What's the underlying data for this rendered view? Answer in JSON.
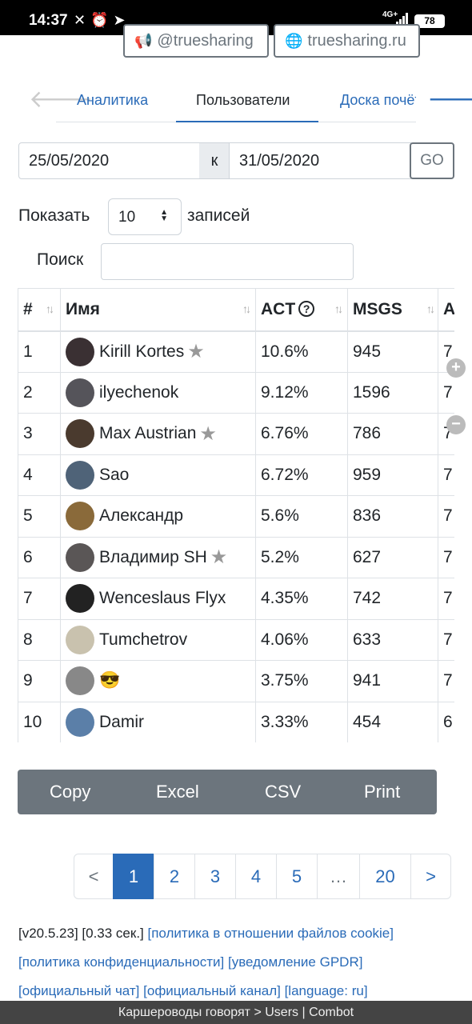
{
  "statusbar": {
    "time": "14:37",
    "icons": "✕⏰➤",
    "net_top": "4G+",
    "net_bottom": "",
    "battery": "78"
  },
  "social": [
    {
      "icon": "megaphone-icon",
      "glyph": "📢",
      "label": "@truesharing"
    },
    {
      "icon": "globe-icon",
      "glyph": "🌐",
      "label": "truesharing.ru"
    }
  ],
  "tabs": {
    "prev_glyph": "🡐",
    "next_glyph": "🡒",
    "items": [
      "Аналитика",
      "Пользователи",
      "Доска почёта"
    ],
    "active": "Пользователи"
  },
  "colors": {
    "accent": "#2a6bb8",
    "secondary": "#6c757d"
  },
  "date_filter": {
    "from": "25/05/2020",
    "sep": "к",
    "to": "31/05/2020",
    "go": "GO"
  },
  "length": {
    "show": "Показать",
    "value": "10",
    "entries": "записей"
  },
  "search": {
    "label": "Поиск",
    "value": ""
  },
  "table": {
    "headers": {
      "num": "#",
      "name": "Имя",
      "act": "ACT",
      "act_help": "?",
      "msgs": "MSGS",
      "al": "AL"
    },
    "rows": [
      {
        "num": "1",
        "name": "Kirill Kortes",
        "star": true,
        "act": "10.6%",
        "msgs": "945",
        "al": "7",
        "avatar": "#3a3033"
      },
      {
        "num": "2",
        "name": "ilyechenok",
        "star": false,
        "act": "9.12%",
        "msgs": "1596",
        "al": "7",
        "avatar": "#55545a"
      },
      {
        "num": "3",
        "name": "Max Austrian",
        "star": true,
        "act": "6.76%",
        "msgs": "786",
        "al": "7",
        "avatar": "#4a3a2e"
      },
      {
        "num": "4",
        "name": "Sao",
        "star": false,
        "act": "6.72%",
        "msgs": "959",
        "al": "7",
        "avatar": "#4f6378"
      },
      {
        "num": "5",
        "name": "Александр",
        "star": false,
        "act": "5.6%",
        "msgs": "836",
        "al": "7",
        "avatar": "#8a6a3a"
      },
      {
        "num": "6",
        "name": "Владимир SH",
        "star": true,
        "act": "5.2%",
        "msgs": "627",
        "al": "7",
        "avatar": "#5a5656"
      },
      {
        "num": "7",
        "name": "Wenceslaus Flyx",
        "star": false,
        "act": "4.35%",
        "msgs": "742",
        "al": "7",
        "avatar": "#222222"
      },
      {
        "num": "8",
        "name": "Tumchetrov",
        "star": false,
        "act": "4.06%",
        "msgs": "633",
        "al": "7",
        "avatar": "#c9c2ae"
      },
      {
        "num": "9",
        "name": "😎",
        "star": false,
        "act": "3.75%",
        "msgs": "941",
        "al": "7",
        "avatar": "#888888"
      },
      {
        "num": "10",
        "name": "Damir",
        "star": false,
        "act": "3.33%",
        "msgs": "454",
        "al": "6",
        "avatar": "#5b7fa8"
      }
    ]
  },
  "side_buttons": {
    "plus": "+",
    "minus": "−"
  },
  "export_buttons": [
    "Copy",
    "Excel",
    "CSV",
    "Print"
  ],
  "pagination": [
    "<",
    "1",
    "2",
    "3",
    "4",
    "5",
    "…",
    "20",
    ">"
  ],
  "pagination_active": "1",
  "footer": {
    "version": "[v20.5.23] [0.33 сек.]",
    "links_line1": [
      "[политика в отношении файлов cookie]"
    ],
    "links_line2": [
      "[политика конфиденциальности]",
      "[уведомление GPDR]"
    ],
    "links_line3": [
      "[официальный чат]",
      "[официальный канал]",
      "[language: ru]"
    ]
  },
  "bottom_bar": "Каршероводы говорят > Users | Combot"
}
